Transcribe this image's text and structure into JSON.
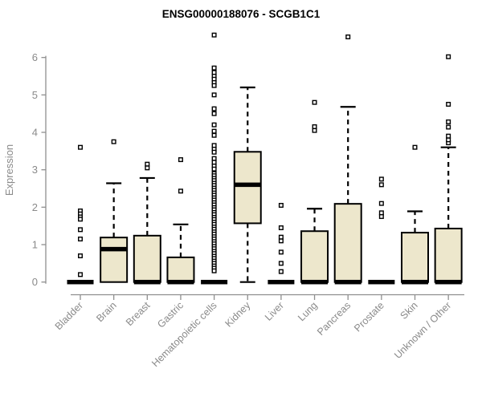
{
  "colors": {
    "box_fill": "#EDE7CC",
    "box_stroke": "#000000",
    "median": "#000000",
    "axis": "#8F8F8F",
    "label": "#8A8A8A",
    "title": "#000000",
    "background": "#FFFFFF",
    "outlier_fill": "#FFFFFF"
  },
  "chart_data": {
    "type": "box",
    "title": "ENSG00000188076 - SCGB1C1",
    "xlabel": "",
    "ylabel": "Expression",
    "ylim": [
      0,
      6.7
    ],
    "yticks": [
      0,
      1,
      2,
      3,
      4,
      5,
      6
    ],
    "grid": false,
    "legend": false,
    "categories": [
      "Bladder",
      "Brain",
      "Breast",
      "Gastric",
      "Hematopoietic cells",
      "Kidney",
      "Liver",
      "Lung",
      "Pancreas",
      "Prostate",
      "Skin",
      "Unknown / Other"
    ],
    "series": [
      {
        "name": "Bladder",
        "whisker_low": 0,
        "q1": 0,
        "median": 0,
        "q3": 0,
        "whisker_high": 0,
        "outliers": [
          3.6,
          1.9,
          1.82,
          1.74,
          1.68,
          1.4,
          1.15,
          0.7,
          0.2
        ]
      },
      {
        "name": "Brain",
        "whisker_low": 0,
        "q1": 0,
        "median": 0.88,
        "q3": 1.19,
        "whisker_high": 2.64,
        "outliers": [
          3.75
        ]
      },
      {
        "name": "Breast",
        "whisker_low": 0,
        "q1": 0,
        "median": 0,
        "q3": 1.24,
        "whisker_high": 2.78,
        "outliers": [
          3.15,
          3.05
        ]
      },
      {
        "name": "Gastric",
        "whisker_low": 0,
        "q1": 0,
        "median": 0,
        "q3": 0.66,
        "whisker_high": 1.54,
        "outliers": [
          3.27,
          2.43
        ]
      },
      {
        "name": "Hematopoietic cells",
        "whisker_low": 0,
        "q1": 0,
        "median": 0,
        "q3": 0,
        "whisker_high": 0,
        "outliers": [
          6.6,
          5.72,
          5.6,
          5.5,
          5.42,
          5.33,
          5.25,
          5.0,
          4.63,
          4.5,
          4.2,
          4.03,
          3.92,
          3.65,
          3.55,
          3.47,
          3.3,
          3.2,
          3.1,
          3.02,
          2.9,
          2.84,
          2.77,
          2.71,
          2.64,
          2.58,
          2.51,
          2.45,
          2.38,
          2.32,
          2.25,
          2.19,
          2.12,
          2.06,
          1.99,
          1.93,
          1.86,
          1.8,
          1.73,
          1.67,
          1.6,
          1.54,
          1.47,
          1.41,
          1.34,
          1.28,
          1.21,
          1.15,
          1.08,
          1.02,
          0.95,
          0.89,
          0.82,
          0.76,
          0.69,
          0.63,
          0.56,
          0.5,
          0.43,
          0.37,
          0.3
        ]
      },
      {
        "name": "Kidney",
        "whisker_low": 0,
        "q1": 1.57,
        "median": 2.6,
        "q3": 3.48,
        "whisker_high": 5.2,
        "outliers": []
      },
      {
        "name": "Liver",
        "whisker_low": 0,
        "q1": 0,
        "median": 0,
        "q3": 0,
        "whisker_high": 0,
        "outliers": [
          2.05,
          1.45,
          1.2,
          1.1,
          0.8,
          0.5,
          0.28
        ]
      },
      {
        "name": "Lung",
        "whisker_low": 0,
        "q1": 0,
        "median": 0,
        "q3": 1.36,
        "whisker_high": 1.96,
        "outliers": [
          4.8,
          4.15,
          4.05
        ]
      },
      {
        "name": "Pancreas",
        "whisker_low": 0,
        "q1": 0,
        "median": 0,
        "q3": 2.09,
        "whisker_high": 4.68,
        "outliers": [
          6.55
        ]
      },
      {
        "name": "Prostate",
        "whisker_low": 0,
        "q1": 0,
        "median": 0,
        "q3": 0,
        "whisker_high": 0,
        "outliers": [
          2.75,
          2.6,
          2.1,
          1.85,
          1.75
        ]
      },
      {
        "name": "Skin",
        "whisker_low": 0,
        "q1": 0,
        "median": 0,
        "q3": 1.32,
        "whisker_high": 1.89,
        "outliers": [
          3.6
        ]
      },
      {
        "name": "Unknown / Other",
        "whisker_low": 0,
        "q1": 0,
        "median": 0,
        "q3": 1.43,
        "whisker_high": 3.6,
        "outliers": [
          3.72,
          3.8,
          3.9,
          4.14,
          4.28,
          4.75,
          6.02
        ]
      }
    ]
  }
}
